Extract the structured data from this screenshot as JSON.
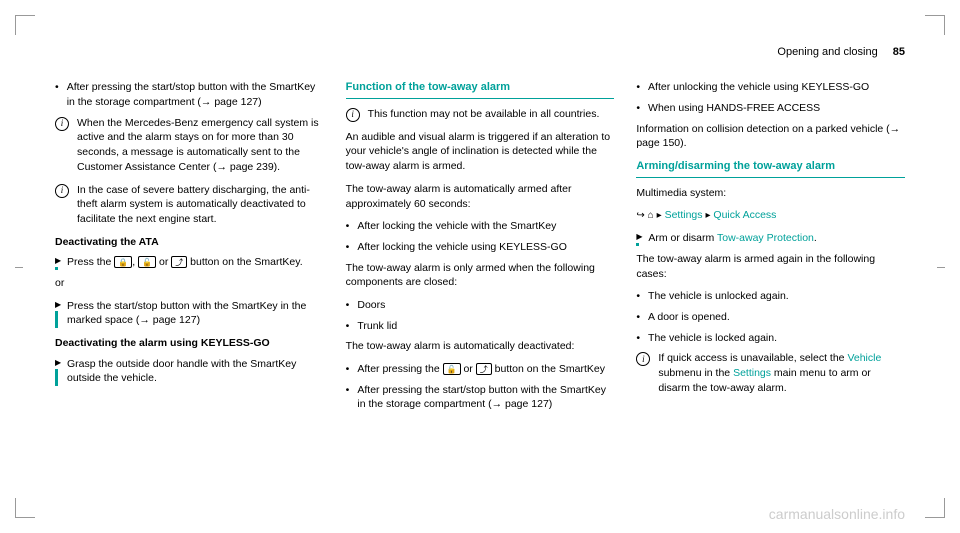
{
  "header": {
    "title": "Opening and closing",
    "page_number": "85"
  },
  "col1": {
    "item1": "After pressing the start/stop button with the SmartKey in the storage compartment (→ page 127)",
    "info1": "When the Mercedes-Benz emergency call system is active and the alarm stays on for more than 30 seconds, a message is automatically sent to the Customer Assistance Center (→ page 239).",
    "info2": "In the case of severe battery discharging, the anti-theft alarm system is automatically deactivated to facilitate the next engine start.",
    "sub1": "Deactivating the ATA",
    "action1a": "Press the ",
    "action1b": " button on the SmartKey.",
    "or": "or",
    "action2": "Press the start/stop button with the SmartKey in the marked space (→ page 127)",
    "sub2": "Deactivating the alarm using KEYLESS-GO",
    "action3": "Grasp the outside door handle with the SmartKey outside the vehicle."
  },
  "col2": {
    "heading": "Function of the tow-away alarm",
    "info1": "This function may not be available in all countries.",
    "para1": "An audible and visual alarm is triggered if an alteration to your vehicle's angle of inclination is detected while the tow-away alarm is armed.",
    "para2": "The tow-away alarm is automatically armed after approximately 60 seconds:",
    "bullet1": "After locking the vehicle with the SmartKey",
    "bullet2": "After locking the vehicle using KEYLESS-GO",
    "para3": "The tow-away alarm is only armed when the following components are closed:",
    "bullet3": "Doors",
    "bullet4": "Trunk lid",
    "para4": "The tow-away alarm is automatically deactivated:",
    "bullet5a": "After pressing the ",
    "bullet5b": " button on the SmartKey",
    "bullet6": "After pressing the start/stop button with the SmartKey in the storage compartment (→ page 127)"
  },
  "col3": {
    "bullet1": "After unlocking the vehicle using KEYLESS-GO",
    "bullet2": "When using HANDS-FREE ACCESS",
    "para1": "Information on collision detection on a parked vehicle (→ page 150).",
    "heading": "Arming/disarming the tow-away alarm",
    "para2": "Multimedia system:",
    "nav_settings": "Settings",
    "nav_quick": "Quick Access",
    "action1a": "Arm or disarm ",
    "action1b": "Tow-away Protection",
    "para3": "The tow-away alarm is armed again in the following cases:",
    "bullet3": "The vehicle is unlocked again.",
    "bullet4": "A door is opened.",
    "bullet5": "The vehicle is locked again.",
    "info1a": "If quick access is unavailable, select the ",
    "info1b": "Vehicle",
    "info1c": " submenu in the ",
    "info1d": "Settings",
    "info1e": " main menu to arm or disarm the tow-away alarm."
  },
  "watermark": "carmanualsonline.info"
}
